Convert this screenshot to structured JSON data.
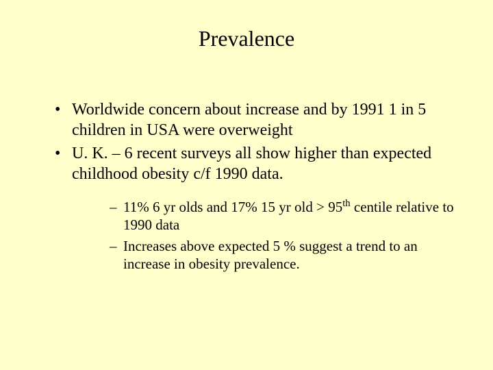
{
  "background_color": "#ffffcc",
  "text_color": "#000000",
  "font_family": "Times New Roman",
  "title": {
    "text": "Prevalence",
    "fontsize": 32
  },
  "bullets": [
    {
      "text": "Worldwide concern about increase and by 1991 1 in 5 children in USA were overweight"
    },
    {
      "text": "U. K. – 6 recent surveys all show higher than expected childhood obesity c/f 1990 data."
    }
  ],
  "sub_bullets": [
    {
      "prefix": " 11% 6 yr olds and 17% 15 yr old > 95",
      "sup": "th",
      "suffix": " centile relative to 1990 data"
    },
    {
      "text": "Increases above expected 5 % suggest a trend to an increase in obesity prevalence."
    }
  ],
  "bullet_fontsize": 24,
  "sub_bullet_fontsize": 21
}
